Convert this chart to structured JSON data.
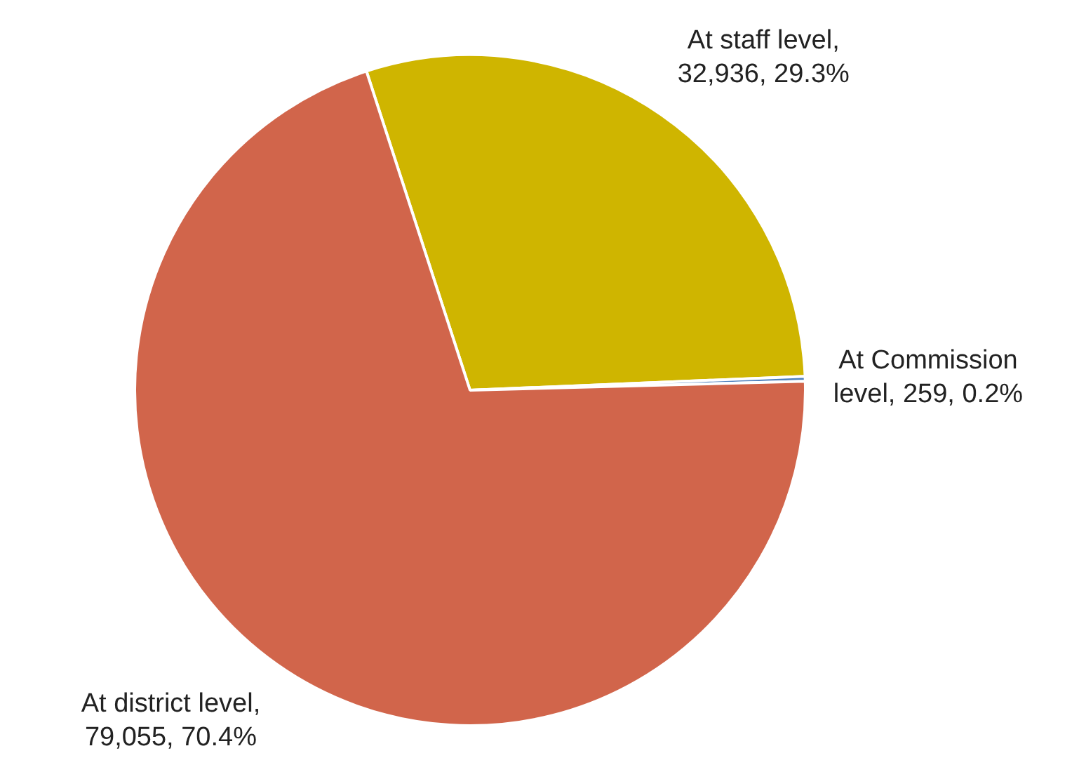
{
  "chart_data": {
    "type": "pie",
    "categories": [
      "At staff level",
      "At Commission level",
      "At district level"
    ],
    "values": [
      32936,
      259,
      79055
    ],
    "colors": [
      "#cfb500",
      "#4f81bd",
      "#d1654b"
    ],
    "value_labels": [
      ", 32,936, 29.3%",
      ", 259, 0.2%",
      ", 79,055, 70.4%"
    ]
  }
}
